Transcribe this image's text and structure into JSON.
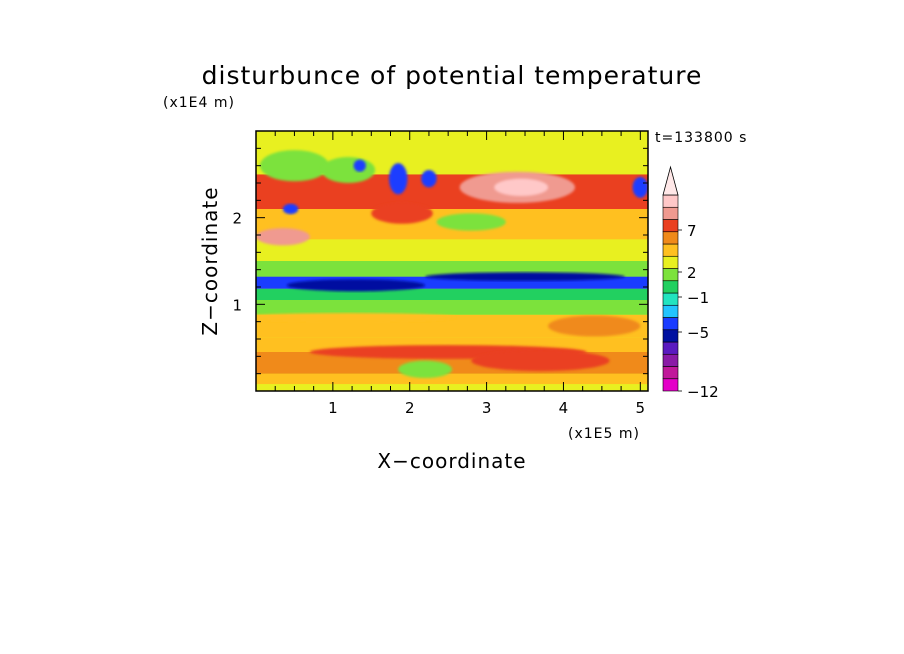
{
  "chart_data": {
    "type": "heatmap",
    "title": "disturbunce of potential temperature",
    "xlabel": "X−coordinate",
    "ylabel": "Z−coordinate",
    "x_unit": "(x1E5 m)",
    "y_unit": "(x1E4 m)",
    "time_label": "t=133800 s",
    "xlim": [
      0,
      5.1
    ],
    "ylim": [
      0,
      3.0
    ],
    "x_ticks": [
      "1",
      "2",
      "3",
      "4",
      "5"
    ],
    "y_ticks": [
      "1",
      "2"
    ],
    "colorbar": {
      "labels": [
        "7",
        "2",
        "−1",
        "−5",
        "−12"
      ],
      "levels": [
        -12,
        -10,
        -8,
        -6,
        -5,
        -4,
        -3,
        -2,
        -1,
        0,
        1,
        2,
        3,
        5,
        7,
        9
      ],
      "colors": [
        "#e400c8",
        "#c0189a",
        "#8a1aa6",
        "#5a1ac0",
        "#0010a0",
        "#1a3cff",
        "#22c4ff",
        "#22e4c0",
        "#22d060",
        "#7ce23c",
        "#e8f020",
        "#ffc020",
        "#f08a1a",
        "#ea4020",
        "#f09a90",
        "#ffc8c8",
        "#ffe8e8"
      ],
      "extend_max": true
    },
    "bands_description_z": [
      {
        "z_range": [
          0.0,
          0.08
        ],
        "dominant_value": 0.5
      },
      {
        "z_range": [
          0.08,
          0.2
        ],
        "dominant_value": 1.5
      },
      {
        "z_range": [
          0.2,
          0.45
        ],
        "dominant_value": 2.5
      },
      {
        "z_range": [
          0.45,
          0.62
        ],
        "dominant_value": 1.5
      },
      {
        "z_range": [
          0.62,
          0.88
        ],
        "dominant_value": 1.2
      },
      {
        "z_range": [
          0.88,
          1.05
        ],
        "dominant_value": -0.5
      },
      {
        "z_range": [
          1.05,
          1.18
        ],
        "dominant_value": -1.5
      },
      {
        "z_range": [
          1.18,
          1.32
        ],
        "dominant_value": -4.5
      },
      {
        "z_range": [
          1.32,
          1.5
        ],
        "dominant_value": -0.5
      },
      {
        "z_range": [
          1.5,
          1.75
        ],
        "dominant_value": 0.5
      },
      {
        "z_range": [
          1.75,
          2.1
        ],
        "dominant_value": 1.5
      },
      {
        "z_range": [
          2.1,
          2.5
        ],
        "dominant_value": 3.0
      },
      {
        "z_range": [
          2.5,
          3.0
        ],
        "dominant_value": 0.0
      }
    ]
  }
}
